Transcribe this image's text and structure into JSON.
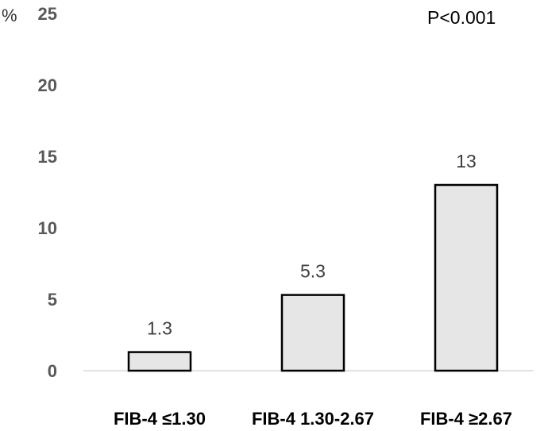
{
  "chart_data": {
    "type": "bar",
    "categories": [
      "FIB-4 ≤1.30",
      "FIB-4 1.30-2.67",
      "FIB-4 ≥2.67"
    ],
    "values": [
      1.3,
      5.3,
      13
    ],
    "data_labels": [
      "1.3",
      "5.3",
      "13"
    ],
    "y_unit": "%",
    "ylim": [
      0,
      25
    ],
    "yticks": [
      0,
      5,
      10,
      15,
      20,
      25
    ],
    "annotation": "P<0.001",
    "grid": false,
    "legend": "none",
    "colors": {
      "bar_fill": "#e6e6e6",
      "bar_stroke": "#000000",
      "axis": "#d9d9d9"
    }
  }
}
